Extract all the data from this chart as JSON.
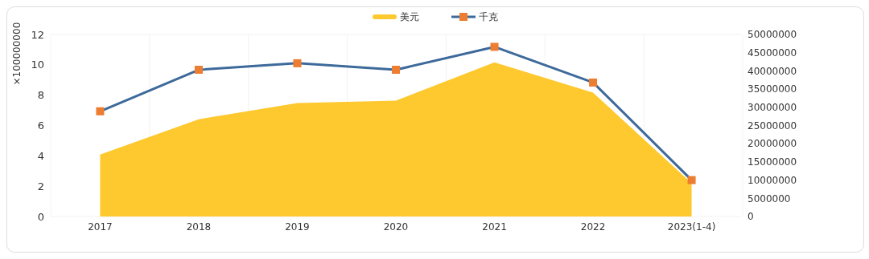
{
  "chart_data": {
    "type": "area",
    "ylabel": "×100000000",
    "categories": [
      "2017",
      "2018",
      "2019",
      "2020",
      "2021",
      "2022",
      "2023(1-4)"
    ],
    "series": [
      {
        "name": "美元",
        "color": "#fdc92f",
        "values": [
          4.09,
          6.41,
          7.48,
          7.64,
          10.16,
          8.17,
          2.2
        ]
      },
      {
        "name": "千克",
        "type": "line",
        "marker": "square",
        "axis": "y2",
        "color": "#3d6a9b",
        "colors": [
          "#ed7d31",
          "#ed7d31",
          "#ed7d31",
          "#ed7d31",
          "#ed7d31",
          "#ed7d31",
          "#ed7d31"
        ],
        "values": [
          28900000,
          40300000,
          42100000,
          40300000,
          46600000,
          36800000,
          10000000
        ]
      }
    ],
    "ylim": [
      0,
      12
    ],
    "yticks": [
      0,
      2,
      4,
      6,
      8,
      10,
      12
    ],
    "y2lim": [
      0,
      50000000
    ],
    "y2ticks": [
      0,
      5000000,
      10000000,
      15000000,
      20000000,
      25000000,
      30000000,
      35000000,
      40000000,
      45000000,
      50000000
    ],
    "grid": true,
    "legend": "top"
  }
}
